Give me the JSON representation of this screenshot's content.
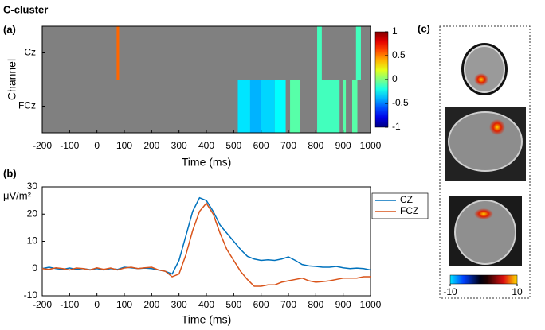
{
  "title": "C-cluster",
  "chart_data": [
    {
      "type": "heatmap",
      "panel_label": "(a)",
      "y_label": "Channel",
      "x_label": "Time (ms)",
      "categories": [
        "Cz",
        "FCz"
      ],
      "xlim": [
        -200,
        1000
      ],
      "xticks": [
        -200,
        -100,
        0,
        100,
        200,
        300,
        400,
        500,
        600,
        700,
        800,
        900,
        1000
      ],
      "background": "#808080",
      "clim": [
        -1,
        1
      ],
      "cticks": [
        -1,
        -0.5,
        0,
        0.5,
        1
      ],
      "cells": [
        {
          "channel": 0,
          "start": 72,
          "end": 81,
          "value": 0.55
        },
        {
          "channel": 0,
          "start": 805,
          "end": 822,
          "value": -0.12
        },
        {
          "channel": 0,
          "start": 947,
          "end": 965,
          "value": -0.12
        },
        {
          "channel": 1,
          "start": 515,
          "end": 560,
          "value": -0.3
        },
        {
          "channel": 1,
          "start": 560,
          "end": 600,
          "value": -0.4
        },
        {
          "channel": 1,
          "start": 600,
          "end": 650,
          "value": -0.33
        },
        {
          "channel": 1,
          "start": 650,
          "end": 690,
          "value": -0.25
        },
        {
          "channel": 1,
          "start": 706,
          "end": 742,
          "value": -0.08
        },
        {
          "channel": 1,
          "start": 805,
          "end": 887,
          "value": -0.12
        },
        {
          "channel": 1,
          "start": 898,
          "end": 910,
          "value": -0.08
        },
        {
          "channel": 1,
          "start": 933,
          "end": 952,
          "value": -0.08
        }
      ]
    },
    {
      "type": "line",
      "panel_label": "(b)",
      "y_label": "μV/m²",
      "x_label": "Time (ms)",
      "x": [
        -200,
        -175,
        -150,
        -125,
        -100,
        -75,
        -50,
        -25,
        0,
        25,
        50,
        75,
        100,
        125,
        150,
        175,
        200,
        225,
        250,
        275,
        300,
        325,
        350,
        375,
        400,
        425,
        450,
        475,
        500,
        525,
        550,
        575,
        600,
        625,
        650,
        675,
        700,
        725,
        750,
        775,
        800,
        825,
        850,
        875,
        900,
        925,
        950,
        975,
        1000
      ],
      "xlim": [
        -200,
        1000
      ],
      "xticks": [
        -200,
        -100,
        0,
        100,
        200,
        300,
        400,
        500,
        600,
        700,
        800,
        900,
        1000
      ],
      "ylim": [
        -10,
        30
      ],
      "yticks": [
        -10,
        0,
        10,
        20,
        30
      ],
      "series": [
        {
          "name": "CZ",
          "color": "#0072bd",
          "values": [
            0,
            0.5,
            0,
            -0.3,
            0.2,
            -0.3,
            0,
            -0.4,
            0,
            -0.5,
            0,
            -0.3,
            0.5,
            0.3,
            0,
            0.2,
            0,
            -0.5,
            -1,
            -2,
            3,
            12,
            21,
            26,
            25,
            21,
            16,
            13,
            10,
            7,
            4.5,
            3.5,
            3,
            3.2,
            3,
            3.5,
            4.3,
            3,
            1.5,
            1,
            0.8,
            0.5,
            0.5,
            0.8,
            0.3,
            0,
            0.2,
            0,
            -0.5
          ]
        },
        {
          "name": "FCZ",
          "color": "#d95319",
          "values": [
            0,
            -0.3,
            0.3,
            0,
            -0.5,
            0.2,
            0,
            -0.5,
            0.3,
            -0.3,
            0.2,
            -0.5,
            0.2,
            0.5,
            0,
            0.3,
            0.5,
            -0.5,
            -1,
            -3,
            -2,
            5,
            14,
            21,
            24,
            20,
            13,
            7,
            3,
            -1,
            -4,
            -6.5,
            -6.5,
            -6,
            -6,
            -5,
            -4.5,
            -4,
            -3.5,
            -4.5,
            -5,
            -4.8,
            -4.5,
            -4,
            -3.5,
            -3.5,
            -3.5,
            -3,
            -3
          ]
        }
      ]
    },
    {
      "type": "colorbar",
      "panel_label": "(c)",
      "clim": [
        -10,
        10
      ],
      "cticks": [
        -10,
        10
      ]
    }
  ]
}
